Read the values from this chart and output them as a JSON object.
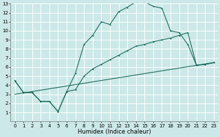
{
  "xlabel": "Humidex (Indice chaleur)",
  "bg_color": "#cce8e8",
  "grid_color": "#ffffff",
  "line_color": "#1a6b5a",
  "xlim": [
    -0.5,
    23.5
  ],
  "ylim": [
    0,
    13
  ],
  "xticks": [
    0,
    1,
    2,
    3,
    4,
    5,
    6,
    7,
    8,
    9,
    10,
    11,
    12,
    13,
    14,
    15,
    16,
    17,
    18,
    19,
    20,
    21,
    22,
    23
  ],
  "yticks": [
    1,
    2,
    3,
    4,
    5,
    6,
    7,
    8,
    9,
    10,
    11,
    12,
    13
  ],
  "curve1_x": [
    0,
    1,
    2,
    3,
    4,
    5,
    6,
    7,
    8,
    9,
    10,
    11,
    12,
    13,
    14,
    15,
    16,
    17,
    18,
    19,
    20,
    21,
    22,
    23
  ],
  "curve1_y": [
    4.5,
    3.2,
    3.2,
    2.2,
    2.2,
    1.1,
    3.3,
    5.3,
    8.5,
    9.5,
    11.0,
    10.7,
    12.1,
    12.6,
    13.2,
    13.2,
    12.7,
    12.5,
    10.0,
    9.8,
    8.5,
    6.2,
    6.3,
    6.5
  ],
  "curve2_x": [
    0,
    1,
    2,
    3,
    4,
    5,
    6,
    7,
    8,
    9,
    10,
    11,
    12,
    13,
    14,
    15,
    16,
    17,
    18,
    19,
    20,
    21,
    22,
    23
  ],
  "curve2_y": [
    4.5,
    3.2,
    3.2,
    2.2,
    2.2,
    1.1,
    3.3,
    3.5,
    5.0,
    5.8,
    6.3,
    6.8,
    7.3,
    7.8,
    8.3,
    8.5,
    8.8,
    9.0,
    9.2,
    9.5,
    9.8,
    6.2,
    6.3,
    6.5
  ],
  "curve3_x": [
    0,
    23
  ],
  "curve3_y": [
    3.0,
    6.5
  ],
  "xlabel_fontsize": 6,
  "tick_fontsize": 5
}
